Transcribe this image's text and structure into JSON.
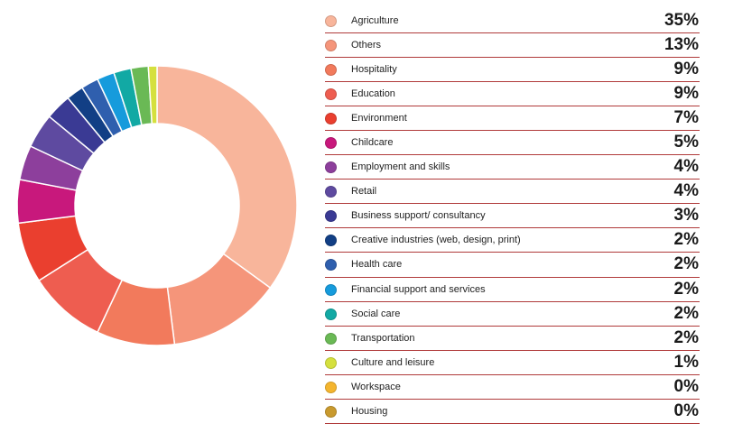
{
  "chart_data": {
    "type": "pie",
    "title": "",
    "donut": true,
    "legend": "right",
    "categories": [
      "Agriculture",
      "Others",
      "Hospitality",
      "Education",
      "Environment",
      "Childcare",
      "Employment and skills",
      "Retail",
      "Business support/ consultancy",
      "Creative industries (web, design, print)",
      "Health care",
      "Financial support and services",
      "Social care",
      "Transportation",
      "Culture and leisure",
      "Workspace",
      "Housing"
    ],
    "value_labels": [
      "35%",
      "13%",
      "9%",
      "9%",
      "7%",
      "5%",
      "4%",
      "4%",
      "3%",
      "2%",
      "2%",
      "2%",
      "2%",
      "2%",
      "1%",
      "0%",
      "0%"
    ],
    "values": [
      35,
      13,
      9,
      9,
      7,
      5,
      4,
      4,
      3,
      2,
      2,
      2,
      2,
      2,
      1,
      0,
      0
    ],
    "colors": [
      "#f8b59b",
      "#f5957a",
      "#f27a5c",
      "#ee5d50",
      "#ea3f2f",
      "#c8187c",
      "#8d3f9c",
      "#5e4aa0",
      "#3a3a94",
      "#123f85",
      "#2f5fae",
      "#169bdc",
      "#12a9a4",
      "#6ab955",
      "#d5e03e",
      "#f4b52f",
      "#c99a2e"
    ]
  }
}
